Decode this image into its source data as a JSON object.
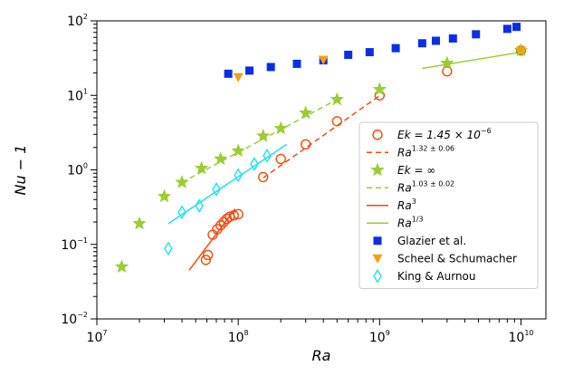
{
  "chart_data": {
    "type": "scatter",
    "xscale": "log",
    "yscale": "log",
    "xlim": [
      10000000,
      15000000000
    ],
    "ylim": [
      0.01,
      100
    ],
    "xlabel": "Ra",
    "ylabel": "Nu − 1",
    "x_tick_labels": [
      {
        "value": 10000000,
        "base": "10",
        "exp": "7"
      },
      {
        "value": 100000000,
        "base": "10",
        "exp": "8"
      },
      {
        "value": 1000000000,
        "base": "10",
        "exp": "9"
      },
      {
        "value": 10000000000,
        "base": "10",
        "exp": "10"
      }
    ],
    "y_tick_labels": [
      {
        "value": 0.01,
        "base": "10",
        "exp": "−2"
      },
      {
        "value": 0.1,
        "base": "10",
        "exp": "−1"
      },
      {
        "value": 1,
        "base": "10",
        "exp": "0"
      },
      {
        "value": 10,
        "base": "10",
        "exp": "1"
      },
      {
        "value": 100,
        "base": "10",
        "exp": "2"
      }
    ],
    "legend_position": "lower-right",
    "series": [
      {
        "name": "Ek = 1.45 × 10⁻⁶",
        "legend_main": "Ek = 1.45 × 10",
        "legend_sup": "−6",
        "kind": "markers",
        "marker": "circle-open",
        "color": "#f24a10",
        "x": [
          59000000,
          61000000,
          66000000,
          71000000,
          75000000,
          79000000,
          83000000,
          87000000,
          93000000,
          100000000,
          150000000,
          200000000,
          300000000,
          500000000,
          1000000000,
          3000000000,
          10000000000
        ],
        "y": [
          0.062,
          0.072,
          0.135,
          0.16,
          0.18,
          0.2,
          0.22,
          0.235,
          0.245,
          0.255,
          0.8,
          1.4,
          2.2,
          4.5,
          10,
          21,
          40
        ]
      },
      {
        "name": "Ra^(1.32±0.06)",
        "legend_main": "Ra",
        "legend_sup": "1.32 ± 0.06",
        "kind": "line",
        "dash": "6,4",
        "color": "#f24a10",
        "x": [
          150000000,
          1000000000
        ],
        "y": [
          0.78,
          9.9
        ]
      },
      {
        "name": "Ek = ∞",
        "legend_main": "Ek = ∞",
        "kind": "markers",
        "marker": "star",
        "color": "#9acd32",
        "x": [
          15000000,
          20000000,
          30000000,
          40000000,
          55000000,
          75000000,
          100000000,
          150000000,
          200000000,
          300000000,
          500000000,
          1000000000,
          3000000000,
          10000000000
        ],
        "y": [
          0.05,
          0.19,
          0.44,
          0.68,
          1.05,
          1.4,
          1.8,
          2.85,
          3.6,
          5.8,
          8.8,
          12,
          27,
          40
        ]
      },
      {
        "name": "Ra^(1.03±0.02)",
        "legend_main": "Ra",
        "legend_sup": "1.03 ± 0.02",
        "kind": "line",
        "dash": "6,4",
        "color": "#9acd32",
        "x": [
          40000000,
          500000000
        ],
        "y": [
          0.68,
          8.8
        ]
      },
      {
        "name": "Ra^3",
        "legend_main": "Ra",
        "legend_sup": "3",
        "kind": "line",
        "dash": "",
        "color": "#f24a10",
        "x": [
          45000000,
          95000000
        ],
        "y": [
          0.045,
          0.3
        ]
      },
      {
        "name": "Ra^(1/3)",
        "legend_main": "Ra",
        "legend_sup": "1/3",
        "kind": "line",
        "dash": "",
        "color": "#9acd32",
        "x": [
          2000000000,
          10000000000
        ],
        "y": [
          23,
          38
        ]
      },
      {
        "name": "Glazier et al.",
        "legend_main": "Glazier et al.",
        "kind": "markers",
        "marker": "square",
        "color": "#0a2ee6",
        "x": [
          85000000,
          120000000,
          170000000,
          260000000,
          400000000,
          600000000,
          850000000,
          1300000000,
          2000000000,
          2500000000,
          3300000000,
          4800000000,
          8000000000,
          9300000000
        ],
        "y": [
          19.5,
          21.5,
          24,
          26.5,
          29.5,
          35,
          38,
          43,
          50,
          54,
          58,
          66,
          78,
          83
        ]
      },
      {
        "name": "Scheel & Schumacher",
        "legend_main": "Scheel & Schumacher",
        "kind": "markers",
        "marker": "triangle-down",
        "color": "#f5a00f",
        "x": [
          100000000,
          400000000,
          10000000000
        ],
        "y": [
          17.5,
          30,
          40
        ]
      },
      {
        "name": "King & Aurnou",
        "legend_main": "King & Aurnou",
        "kind": "markers",
        "marker": "diamond-open",
        "color": "#1ee0f0",
        "x": [
          32000000,
          40000000,
          53000000,
          70000000,
          100000000,
          130000000,
          160000000
        ],
        "y": [
          0.088,
          0.27,
          0.33,
          0.55,
          0.85,
          1.2,
          1.55
        ]
      },
      {
        "name": "King & Aurnou fit",
        "kind": "line",
        "dash": "",
        "color": "#1ee0f0",
        "in_legend": false,
        "x": [
          32000000,
          220000000
        ],
        "y": [
          0.19,
          2.2
        ]
      }
    ]
  }
}
